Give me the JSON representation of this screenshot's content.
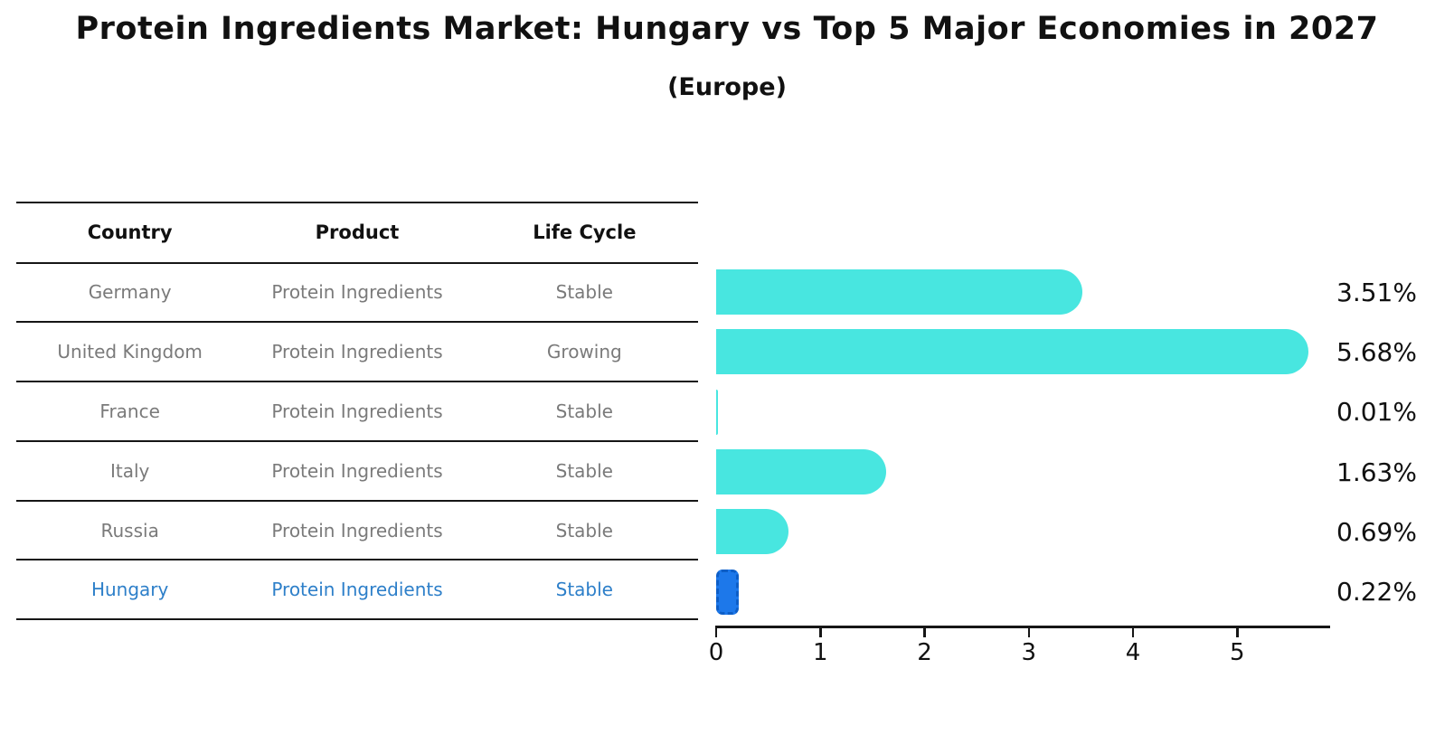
{
  "title": "Protein Ingredients Market: Hungary vs Top 5 Major Economies in 2027",
  "subtitle": "(Europe)",
  "table": {
    "headers": [
      "Country",
      "Product",
      "Life Cycle"
    ],
    "rows": [
      {
        "country": "Germany",
        "product": "Protein Ingredients",
        "life_cycle": "Stable",
        "highlight": false
      },
      {
        "country": "United Kingdom",
        "product": "Protein Ingredients",
        "life_cycle": "Growing",
        "highlight": false
      },
      {
        "country": "France",
        "product": "Protein Ingredients",
        "life_cycle": "Stable",
        "highlight": false
      },
      {
        "country": "Italy",
        "product": "Protein Ingredients",
        "life_cycle": "Stable",
        "highlight": false
      },
      {
        "country": "Russia",
        "product": "Protein Ingredients",
        "life_cycle": "Stable",
        "highlight": false
      },
      {
        "country": "Hungary",
        "product": "Protein Ingredients",
        "life_cycle": "Stable",
        "highlight": true
      }
    ]
  },
  "chart_data": {
    "type": "bar",
    "orientation": "horizontal",
    "title": "Protein Ingredients Market: Hungary vs Top 5 Major Economies in 2027",
    "subtitle": "(Europe)",
    "categories": [
      "Germany",
      "United Kingdom",
      "France",
      "Italy",
      "Russia",
      "Hungary"
    ],
    "values": [
      3.51,
      5.68,
      0.01,
      1.63,
      0.69,
      0.22
    ],
    "value_labels": [
      "3.51%",
      "5.68%",
      "0.01%",
      "1.63%",
      "0.69%",
      "0.22%"
    ],
    "x_ticks": [
      "0",
      "1",
      "2",
      "3",
      "4",
      "5"
    ],
    "xlim": [
      0,
      5.9
    ],
    "grid": false,
    "legend": false,
    "highlight_category": "Hungary",
    "colors": {
      "bar": "#48e6e0",
      "highlight_bar_fill": "#1d78ea",
      "highlight_bar_edge": "#0d5ec7",
      "highlight_text": "#2d7fc9",
      "row_text": "#7a7a7a",
      "axis_and_lines": "#161616",
      "label_text": "#111111"
    }
  }
}
